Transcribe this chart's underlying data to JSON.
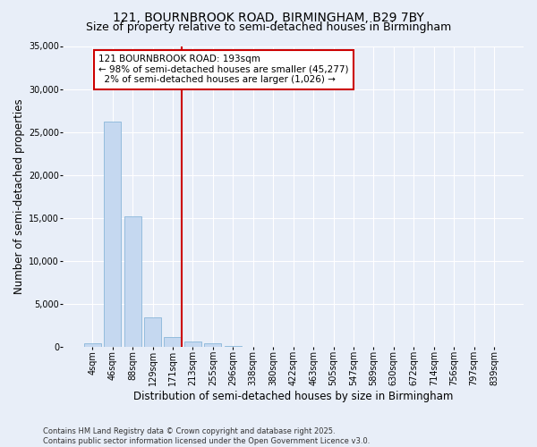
{
  "title_line1": "121, BOURNBROOK ROAD, BIRMINGHAM, B29 7BY",
  "title_line2": "Size of property relative to semi-detached houses in Birmingham",
  "xlabel": "Distribution of semi-detached houses by size in Birmingham",
  "ylabel": "Number of semi-detached properties",
  "categories": [
    "4sqm",
    "46sqm",
    "88sqm",
    "129sqm",
    "171sqm",
    "213sqm",
    "255sqm",
    "296sqm",
    "338sqm",
    "380sqm",
    "422sqm",
    "463sqm",
    "505sqm",
    "547sqm",
    "589sqm",
    "630sqm",
    "672sqm",
    "714sqm",
    "756sqm",
    "797sqm",
    "839sqm"
  ],
  "bar_values": [
    400,
    26200,
    15200,
    3400,
    1100,
    600,
    350,
    100,
    0,
    0,
    0,
    0,
    0,
    0,
    0,
    0,
    0,
    0,
    0,
    0,
    0
  ],
  "bar_color": "#c5d8f0",
  "bar_edge_color": "#7aadd4",
  "vline_color": "#cc0000",
  "vline_pos": 4.45,
  "annotation_text": "121 BOURNBROOK ROAD: 193sqm\n← 98% of semi-detached houses are smaller (45,277)\n  2% of semi-detached houses are larger (1,026) →",
  "annotation_box_color": "#ffffff",
  "annotation_box_edge": "#cc0000",
  "ylim": [
    0,
    35000
  ],
  "yticks": [
    0,
    5000,
    10000,
    15000,
    20000,
    25000,
    30000,
    35000
  ],
  "background_color": "#e8eef8",
  "grid_color": "#ffffff",
  "footer_text": "Contains HM Land Registry data © Crown copyright and database right 2025.\nContains public sector information licensed under the Open Government Licence v3.0.",
  "title_fontsize": 10,
  "subtitle_fontsize": 9,
  "axis_label_fontsize": 8.5,
  "tick_fontsize": 7,
  "annotation_fontsize": 7.5,
  "footer_fontsize": 6
}
